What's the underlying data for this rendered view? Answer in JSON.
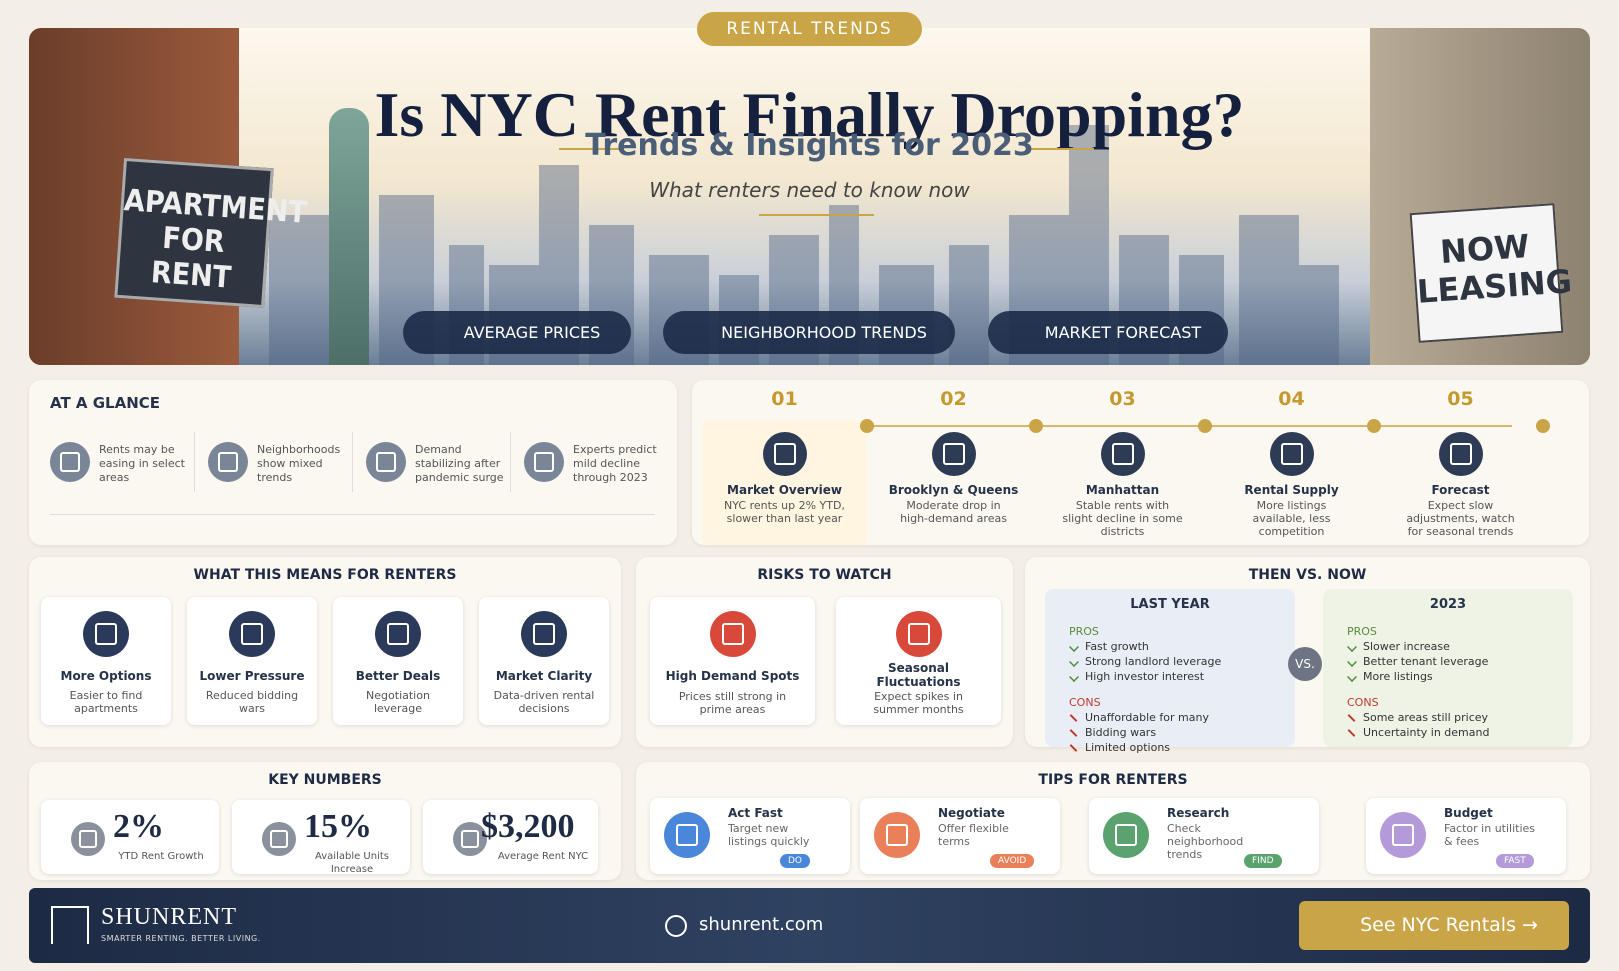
{
  "hero": {
    "badge": "RENTAL TRENDS",
    "title": "Is NYC Rent Finally Dropping?",
    "subtitle": "Trends & Insights for 2023",
    "tagline": "What renters need to know now",
    "sign_left": "APARTMENT FOR RENT",
    "sign_right": "NOW LEASING",
    "tabs": [
      "AVERAGE PRICES",
      "NEIGHBORHOOD TRENDS",
      "MARKET FORECAST"
    ]
  },
  "glance": {
    "title": "AT A GLANCE",
    "items": [
      "Rents may be easing in select areas",
      "Neighborhoods show mixed trends",
      "Demand stabilizing after pandemic surge",
      "Experts predict mild decline through 2023"
    ]
  },
  "timeline": {
    "steps": [
      {
        "num": "01",
        "title": "Market Overview",
        "text": "NYC rents up 2% YTD, slower than last year"
      },
      {
        "num": "02",
        "title": "Brooklyn & Queens",
        "text": "Moderate drop in high-demand areas"
      },
      {
        "num": "03",
        "title": "Manhattan",
        "text": "Stable rents with slight decline in some districts"
      },
      {
        "num": "04",
        "title": "Rental Supply",
        "text": "More listings available, less competition"
      },
      {
        "num": "05",
        "title": "Forecast",
        "text": "Expect slow adjustments, watch for seasonal trends"
      }
    ]
  },
  "renters": {
    "title": "WHAT THIS MEANS FOR RENTERS",
    "cards": [
      {
        "title": "More Options",
        "text": "Easier to find apartments"
      },
      {
        "title": "Lower Pressure",
        "text": "Reduced bidding wars"
      },
      {
        "title": "Better Deals",
        "text": "Negotiation leverage"
      },
      {
        "title": "Market Clarity",
        "text": "Data-driven rental decisions"
      }
    ]
  },
  "risks": {
    "title": "RISKS TO WATCH",
    "cards": [
      {
        "title": "High Demand Spots",
        "text": "Prices still strong in prime areas"
      },
      {
        "title": "Seasonal Fluctuations",
        "text": "Expect spikes in summer months"
      }
    ]
  },
  "compare": {
    "title": "THEN VS. NOW",
    "vs": "VS.",
    "columns": [
      {
        "heading": "LAST YEAR",
        "pros_label": "PROS",
        "pros": [
          "Fast growth",
          "Strong landlord leverage",
          "High investor interest"
        ],
        "cons_label": "CONS",
        "cons": [
          "Unaffordable for many",
          "Bidding wars",
          "Limited options"
        ]
      },
      {
        "heading": "2023",
        "pros_label": "PROS",
        "pros": [
          "Slower increase",
          "Better tenant leverage",
          "More listings"
        ],
        "cons_label": "CONS",
        "cons": [
          "Some areas still pricey",
          "Uncertainty in demand"
        ]
      }
    ]
  },
  "key_numbers": {
    "title": "KEY NUMBERS",
    "items": [
      {
        "value": "2%",
        "label": "YTD Rent Growth"
      },
      {
        "value": "15%",
        "label": "Available Units Increase"
      },
      {
        "value": "$3,200",
        "label": "Average Rent NYC"
      }
    ]
  },
  "tips": {
    "title": "TIPS FOR RENTERS",
    "items": [
      {
        "title": "Act Fast",
        "text": "Target new listings quickly",
        "tag": "DO"
      },
      {
        "title": "Negotiate",
        "text": "Offer flexible terms",
        "tag": "AVOID"
      },
      {
        "title": "Research",
        "text": "Check neighborhood trends",
        "tag": "FIND"
      },
      {
        "title": "Budget",
        "text": "Factor in utilities & fees",
        "tag": "FAST"
      }
    ]
  },
  "footer": {
    "brand": "SHUNRENT",
    "slogan": "SMARTER RENTING. BETTER LIVING.",
    "site": "shunrent.com",
    "cta": "See NYC Rentals →"
  }
}
